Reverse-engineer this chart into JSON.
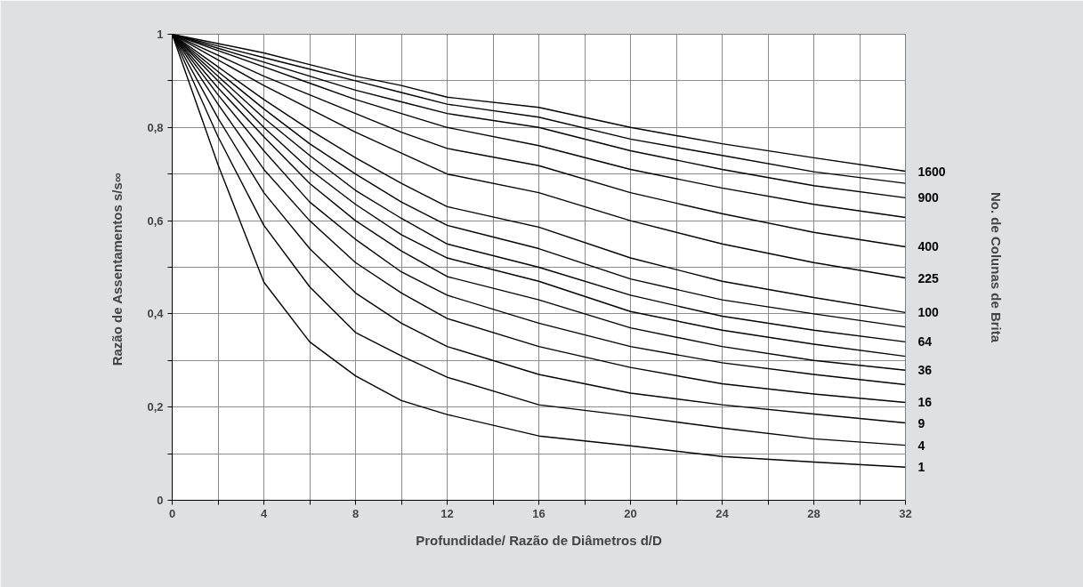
{
  "chart_data": {
    "type": "line",
    "xlabel": "Profundidade/ Razão de Diâmetros d/D",
    "ylabel": "Razão de Assentamentos  s/s∞",
    "legend_title": "No. de Colunas de Brita",
    "x": [
      0,
      2,
      4,
      6,
      8,
      10,
      12,
      16,
      20,
      24,
      28,
      32
    ],
    "xlim": [
      0,
      32
    ],
    "xticks": [
      0,
      {
        "value": 2,
        "label": null
      },
      4,
      {
        "value": 6,
        "label": null
      },
      8,
      {
        "value": 10,
        "label": null
      },
      12,
      {
        "value": 14,
        "label": null
      },
      16,
      {
        "value": 18,
        "label": null
      },
      20,
      {
        "value": 22,
        "label": null
      },
      24,
      {
        "value": 26,
        "label": null
      },
      28,
      {
        "value": 30,
        "label": null
      },
      32
    ],
    "ylim": [
      0,
      1
    ],
    "yticks": [
      0,
      {
        "value": 0.1,
        "label": null
      },
      {
        "value": 0.2,
        "label": "0,2"
      },
      {
        "value": 0.3,
        "label": null
      },
      {
        "value": 0.4,
        "label": "0,4"
      },
      {
        "value": 0.5,
        "label": null
      },
      {
        "value": 0.6,
        "label": "0,6"
      },
      {
        "value": 0.7,
        "label": null
      },
      {
        "value": 0.8,
        "label": "0,8"
      },
      {
        "value": 0.9,
        "label": null
      },
      1
    ],
    "grid": true,
    "legend": false,
    "series": [
      {
        "name": "1",
        "color": "#000000",
        "values": [
          1,
          0.72,
          0.468,
          0.34,
          0.267,
          0.214,
          0.184,
          0.138,
          0.117,
          0.094,
          0.082,
          0.071
        ]
      },
      {
        "name": "4",
        "color": "#000000",
        "values": [
          1,
          0.78,
          0.59,
          0.458,
          0.36,
          0.31,
          0.264,
          0.205,
          0.181,
          0.155,
          0.132,
          0.118
        ]
      },
      {
        "name": "9",
        "color": "#000000",
        "values": [
          1,
          0.82,
          0.66,
          0.54,
          0.445,
          0.38,
          0.33,
          0.27,
          0.23,
          0.205,
          0.185,
          0.166
        ]
      },
      {
        "name": "16",
        "color": "#000000",
        "values": [
          1,
          0.85,
          0.71,
          0.6,
          0.51,
          0.445,
          0.39,
          0.33,
          0.285,
          0.25,
          0.228,
          0.21
        ]
      },
      {
        "color": "#000000",
        "values": [
          1,
          0.87,
          0.75,
          0.64,
          0.56,
          0.49,
          0.44,
          0.38,
          0.33,
          0.295,
          0.27,
          0.248
        ]
      },
      {
        "name": "36",
        "color": "#000000",
        "values": [
          1,
          0.885,
          0.78,
          0.68,
          0.6,
          0.535,
          0.48,
          0.43,
          0.37,
          0.33,
          0.3,
          0.279
        ]
      },
      {
        "color": "#000000",
        "values": [
          1,
          0.9,
          0.8,
          0.71,
          0.635,
          0.57,
          0.52,
          0.47,
          0.405,
          0.365,
          0.335,
          0.309
        ]
      },
      {
        "name": "64",
        "color": "#000000",
        "values": [
          1,
          0.91,
          0.82,
          0.74,
          0.665,
          0.605,
          0.55,
          0.5,
          0.44,
          0.395,
          0.365,
          0.34
        ]
      },
      {
        "color": "#000000",
        "values": [
          1,
          0.92,
          0.84,
          0.765,
          0.7,
          0.64,
          0.59,
          0.54,
          0.475,
          0.43,
          0.4,
          0.372
        ]
      },
      {
        "name": "100",
        "color": "#000000",
        "values": [
          1,
          0.93,
          0.86,
          0.795,
          0.735,
          0.68,
          0.63,
          0.586,
          0.52,
          0.47,
          0.435,
          0.403
        ]
      },
      {
        "name": "225",
        "color": "#000000",
        "values": [
          1,
          0.945,
          0.89,
          0.84,
          0.79,
          0.745,
          0.7,
          0.66,
          0.6,
          0.55,
          0.51,
          0.477
        ]
      },
      {
        "name": "400",
        "color": "#000000",
        "values": [
          1,
          0.955,
          0.91,
          0.87,
          0.83,
          0.79,
          0.755,
          0.718,
          0.66,
          0.615,
          0.575,
          0.544
        ]
      },
      {
        "color": "#000000",
        "values": [
          1,
          0.965,
          0.93,
          0.895,
          0.86,
          0.83,
          0.8,
          0.761,
          0.71,
          0.67,
          0.635,
          0.607
        ]
      },
      {
        "name": "900",
        "color": "#000000",
        "values": [
          1,
          0.97,
          0.94,
          0.91,
          0.88,
          0.855,
          0.83,
          0.8,
          0.75,
          0.71,
          0.675,
          0.649
        ]
      },
      {
        "color": "#000000",
        "values": [
          1,
          0.975,
          0.95,
          0.925,
          0.9,
          0.875,
          0.85,
          0.822,
          0.775,
          0.74,
          0.705,
          0.68
        ]
      },
      {
        "name": "1600",
        "color": "#000000",
        "values": [
          1,
          0.98,
          0.96,
          0.935,
          0.91,
          0.89,
          0.865,
          0.843,
          0.8,
          0.765,
          0.735,
          0.706
        ]
      }
    ]
  }
}
